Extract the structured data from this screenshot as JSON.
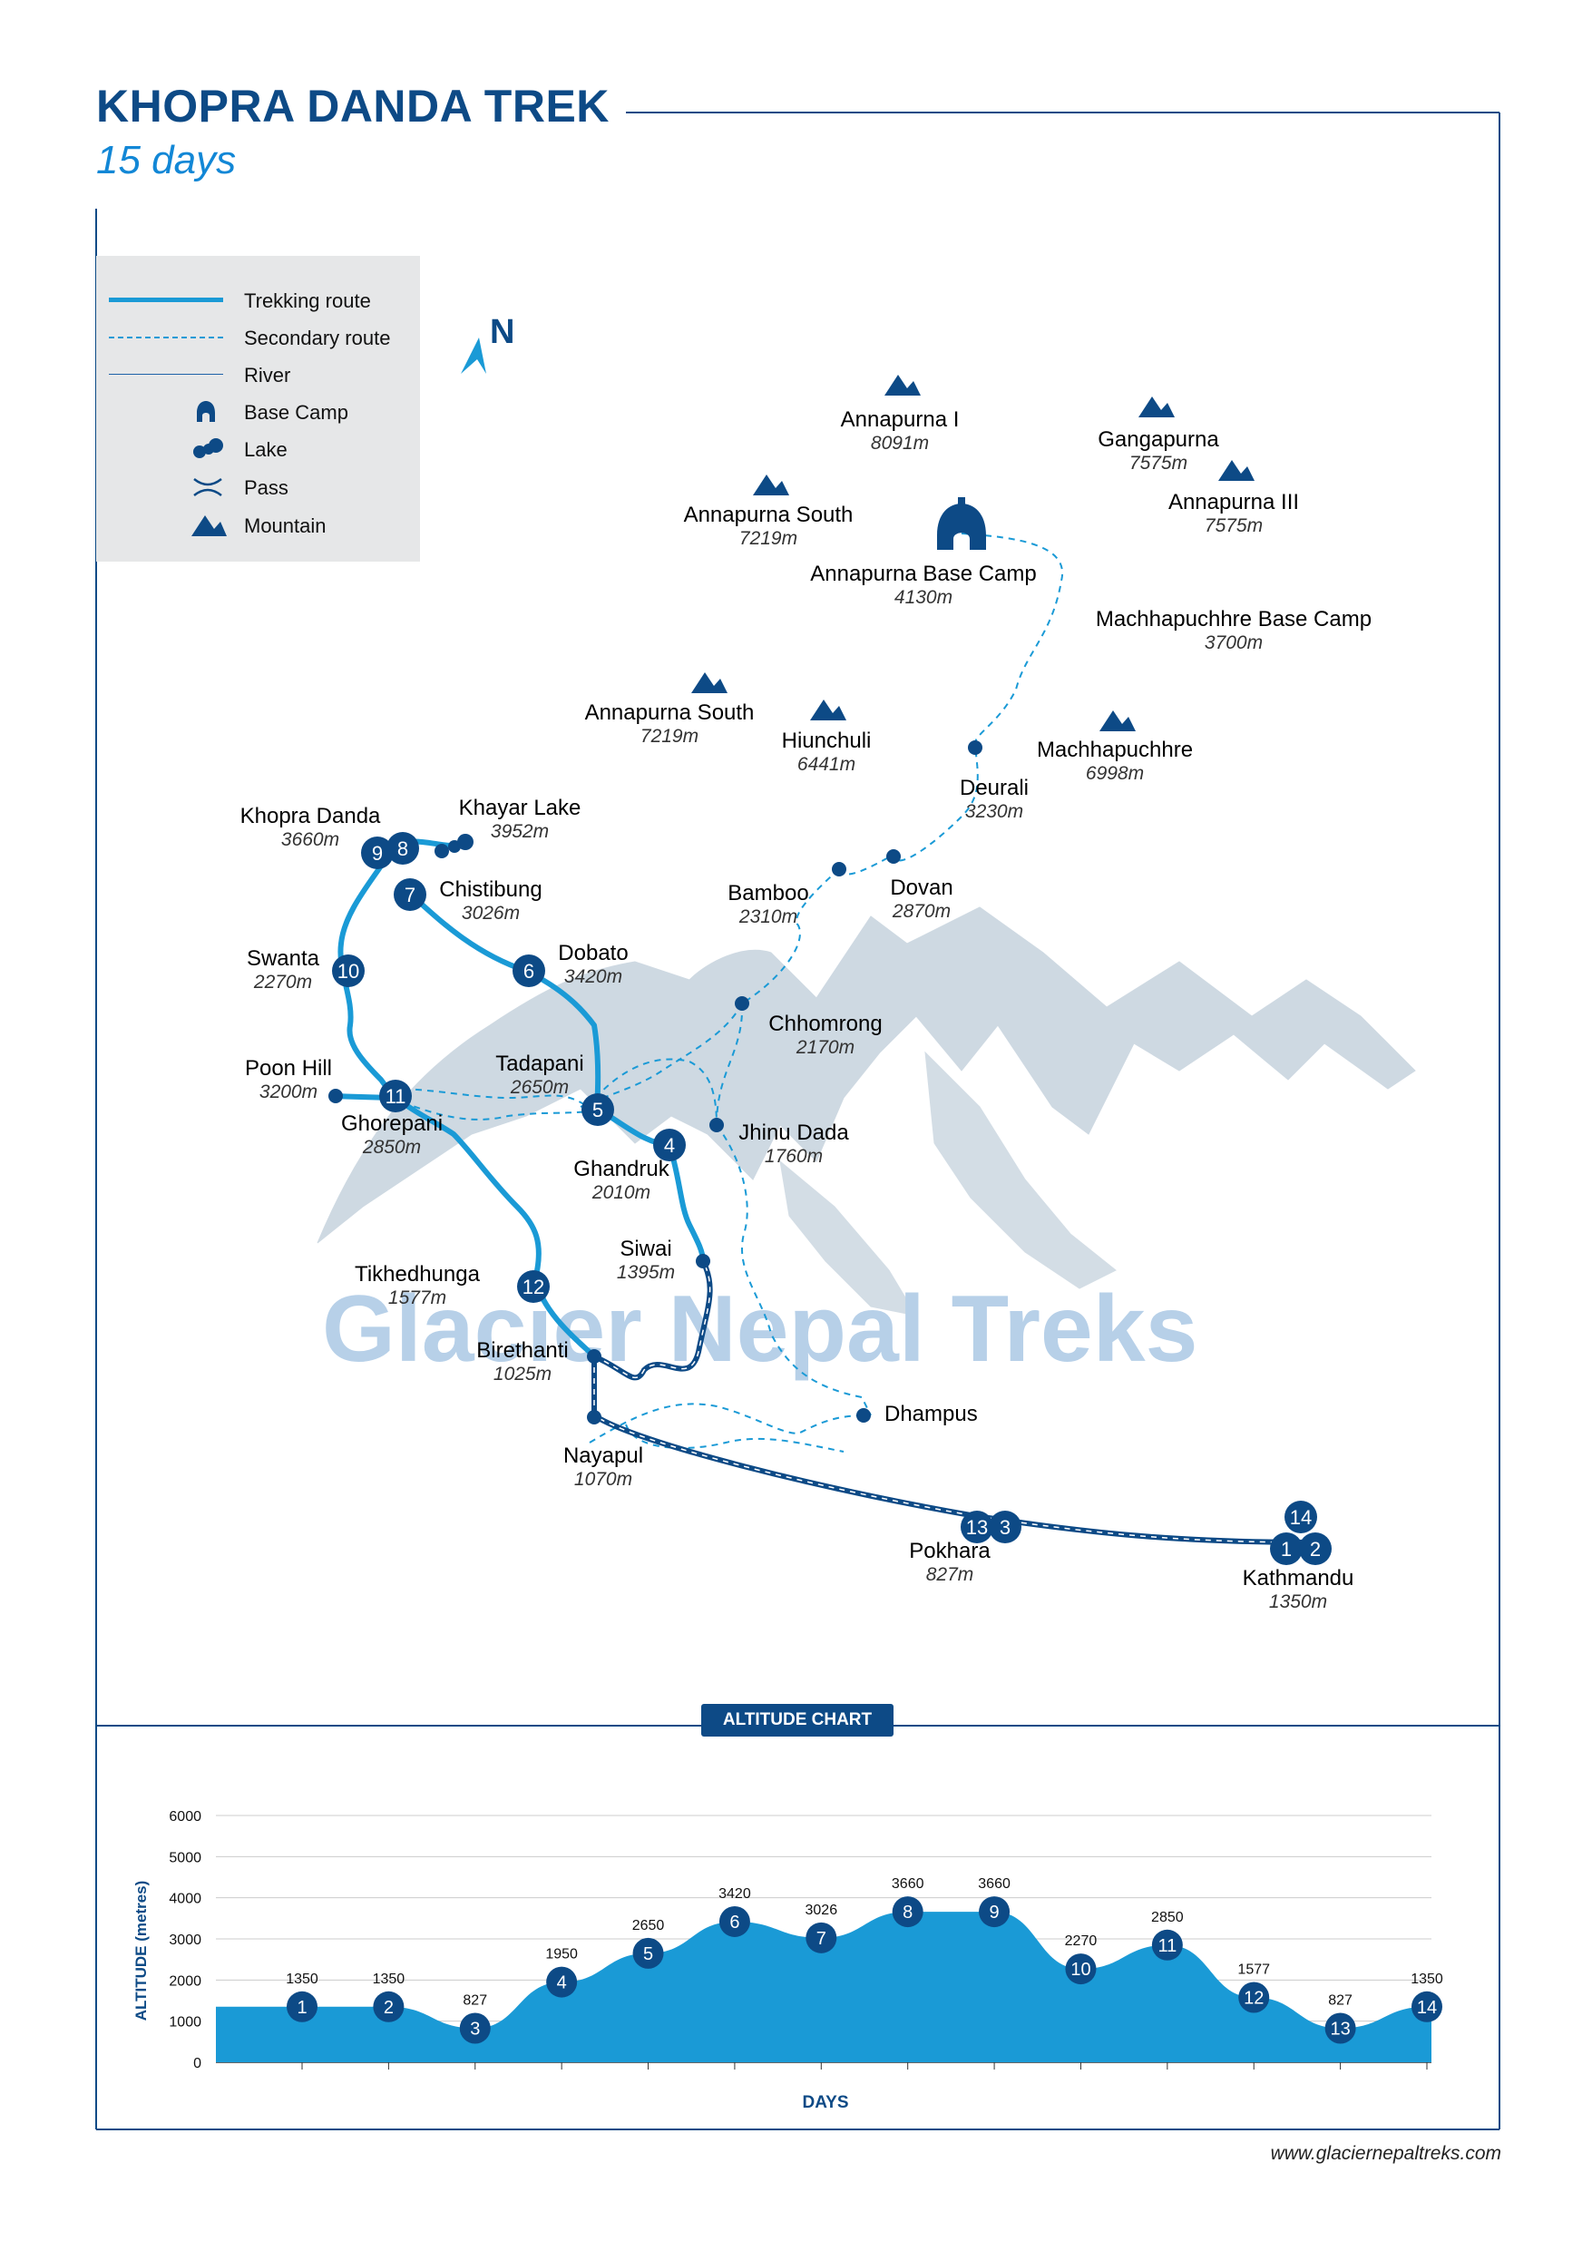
{
  "header": {
    "title": "KHOPRA DANDA TREK",
    "subtitle": "15 days"
  },
  "colors": {
    "route": "#1a9ad6",
    "navy": "#0d4a86",
    "mountain_bg": "#c9d5df",
    "legend_bg": "#e6e7e8",
    "watermark": "#b7d0e8"
  },
  "legend": [
    {
      "label": "Trekking route",
      "icon": "solid-line"
    },
    {
      "label": "Secondary route",
      "icon": "dashed-line"
    },
    {
      "label": "River",
      "icon": "thin-line"
    },
    {
      "label": "Base Camp",
      "icon": "base-camp-icon"
    },
    {
      "label": "Lake",
      "icon": "lake-icon"
    },
    {
      "label": "Pass",
      "icon": "pass-icon"
    },
    {
      "label": "Mountain",
      "icon": "mountain-icon"
    }
  ],
  "compass": {
    "label": "N"
  },
  "watermark": "Glacier Nepal Treks",
  "mountains": [
    {
      "name": "Annapurna I",
      "alt": "8091m"
    },
    {
      "name": "Gangapurna",
      "alt": "7575m"
    },
    {
      "name": "Annapurna III",
      "alt": "7575m"
    },
    {
      "name": "Annapurna South",
      "alt": "7219m"
    },
    {
      "name": "Annapurna South",
      "alt": "7219m"
    },
    {
      "name": "Hiunchuli",
      "alt": "6441m"
    },
    {
      "name": "Machhapuchhre",
      "alt": "6998m"
    }
  ],
  "places": [
    {
      "name": "Annapurna Base Camp",
      "alt": "4130m"
    },
    {
      "name": "Machhapuchhre Base Camp",
      "alt": "3700m"
    },
    {
      "name": "Deurali",
      "alt": "3230m"
    },
    {
      "name": "Dovan",
      "alt": "2870m"
    },
    {
      "name": "Bamboo",
      "alt": "2310m"
    },
    {
      "name": "Chhomrong",
      "alt": "2170m"
    },
    {
      "name": "Jhinu Dada",
      "alt": "1760m"
    },
    {
      "name": "Khopra Danda",
      "alt": "3660m"
    },
    {
      "name": "Khayar Lake",
      "alt": "3952m"
    },
    {
      "name": "Chistibung",
      "alt": "3026m"
    },
    {
      "name": "Dobato",
      "alt": "3420m"
    },
    {
      "name": "Swanta",
      "alt": "2270m"
    },
    {
      "name": "Tadapani",
      "alt": "2650m"
    },
    {
      "name": "Poon Hill",
      "alt": "3200m"
    },
    {
      "name": "Ghorepani",
      "alt": "2850m"
    },
    {
      "name": "Ghandruk",
      "alt": "2010m"
    },
    {
      "name": "Siwai",
      "alt": "1395m"
    },
    {
      "name": "Tikhedhunga",
      "alt": "1577m"
    },
    {
      "name": "Birethanti",
      "alt": "1025m"
    },
    {
      "name": "Dhampus",
      "alt": ""
    },
    {
      "name": "Nayapul",
      "alt": "1070m"
    },
    {
      "name": "Pokhara",
      "alt": "827m"
    },
    {
      "name": "Kathmandu",
      "alt": "1350m"
    }
  ],
  "stops": [
    "1",
    "2",
    "3",
    "4",
    "5",
    "6",
    "7",
    "8",
    "9",
    "10",
    "11",
    "12",
    "13",
    "14"
  ],
  "altitude_chart": {
    "tab_label": "ALTITUDE CHART"
  },
  "chart_data": {
    "type": "area",
    "title": "ALTITUDE CHART",
    "xlabel": "DAYS",
    "ylabel": "ALTITUDE (metres)",
    "ylim": [
      0,
      6000
    ],
    "yticks": [
      0,
      1000,
      2000,
      3000,
      4000,
      5000,
      6000
    ],
    "grid": true,
    "x": [
      1,
      2,
      3,
      4,
      5,
      6,
      7,
      8,
      9,
      10,
      11,
      12,
      13,
      14
    ],
    "values": [
      1350,
      1350,
      827,
      1950,
      2650,
      3420,
      3026,
      3660,
      3660,
      2270,
      2850,
      1577,
      827,
      1350
    ]
  },
  "footer": {
    "url": "www.glaciernepaltreks.com"
  }
}
